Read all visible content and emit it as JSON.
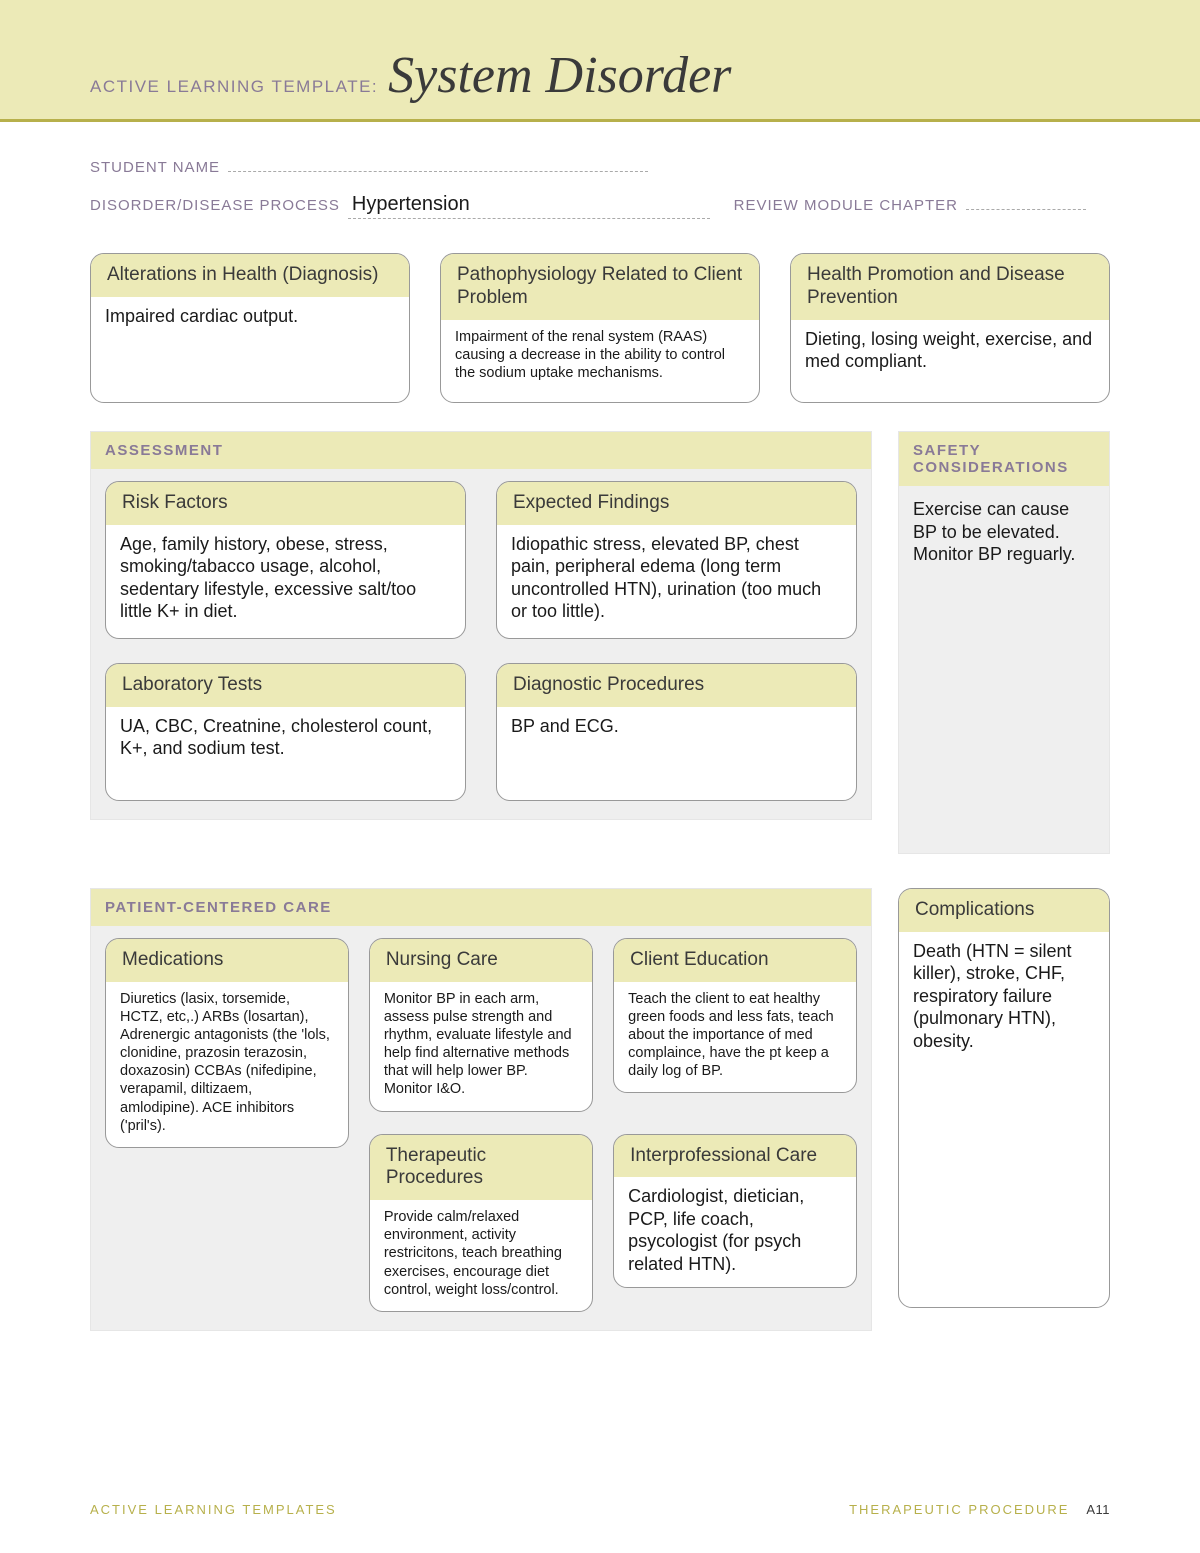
{
  "header": {
    "template_label": "ACTIVE LEARNING TEMPLATE:",
    "title": "System Disorder"
  },
  "form": {
    "student_name_label": "STUDENT NAME",
    "student_name_value": "",
    "disorder_label": "DISORDER/DISEASE PROCESS",
    "disorder_value": "Hypertension",
    "review_label": "REVIEW MODULE CHAPTER",
    "review_value": ""
  },
  "top": {
    "alterations": {
      "title": "Alterations in Health (Diagnosis)",
      "body": "Impaired cardiac output."
    },
    "patho": {
      "title": "Pathophysiology Related to Client Problem",
      "body": "Impairment of the renal system (RAAS) causing a decrease in the ability to control the sodium uptake mechanisms."
    },
    "promotion": {
      "title": "Health Promotion and Disease Prevention",
      "body": "Dieting, losing weight, exercise, and med compliant."
    }
  },
  "assessment": {
    "heading": "ASSESSMENT",
    "risk": {
      "title": "Risk Factors",
      "body": "Age, family history, obese, stress, smoking/tabacco usage, alcohol, sedentary lifestyle, excessive salt/too little K+ in diet."
    },
    "findings": {
      "title": "Expected Findings",
      "body": "Idiopathic stress, elevated BP, chest pain, peripheral edema (long term uncontrolled HTN), urination (too much or too little)."
    },
    "labs": {
      "title": "Laboratory Tests",
      "body": "UA, CBC, Creatnine, cholesterol count, K+, and sodium test."
    },
    "diagnostic": {
      "title": "Diagnostic Procedures",
      "body": "BP and ECG."
    }
  },
  "safety": {
    "heading": "SAFETY CONSIDERATIONS",
    "body": "Exercise can cause BP to be elevated. Monitor BP reguarly."
  },
  "pcc": {
    "heading": "PATIENT-CENTERED CARE",
    "nursing": {
      "title": "Nursing Care",
      "body": "Monitor BP in each arm, assess pulse strength and rhythm, evaluate lifestyle and help find alternative methods that will help lower BP. Monitor I&O."
    },
    "medications": {
      "title": "Medications",
      "body": "Diuretics (lasix, torsemide, HCTZ, etc,.) ARBs (losartan), Adrenergic antagonists (the 'lols, clonidine, prazosin terazosin, doxazosin) CCBAs (nifedipine, verapamil, diltizaem, amlodipine). ACE inhibitors ('pril's)."
    },
    "education": {
      "title": "Client Education",
      "body": "Teach the client to eat healthy green foods and less fats, teach about the importance of med complaince, have the pt keep a daily log of BP."
    },
    "therapeutic": {
      "title": "Therapeutic Procedures",
      "body": "Provide calm/relaxed environment, activity restricitons, teach breathing exercises, encourage diet control, weight loss/control."
    },
    "interprofessional": {
      "title": "Interprofessional Care",
      "body": "Cardiologist, dietician, PCP, life coach, psycologist (for psych related HTN)."
    }
  },
  "complications": {
    "title": "Complications",
    "body": "Death (HTN = silent killer), stroke, CHF, respiratory failure (pulmonary HTN), obesity."
  },
  "footer": {
    "left": "ACTIVE LEARNING TEMPLATES",
    "right_label": "THERAPEUTIC PROCEDURE",
    "page_no": "A11"
  },
  "colors": {
    "band_bg": "#eceab7",
    "band_border": "#b7b04b",
    "label_purple": "#897a97",
    "section_bg": "#efefef",
    "card_border": "#999999",
    "text": "#1a1a1a"
  }
}
